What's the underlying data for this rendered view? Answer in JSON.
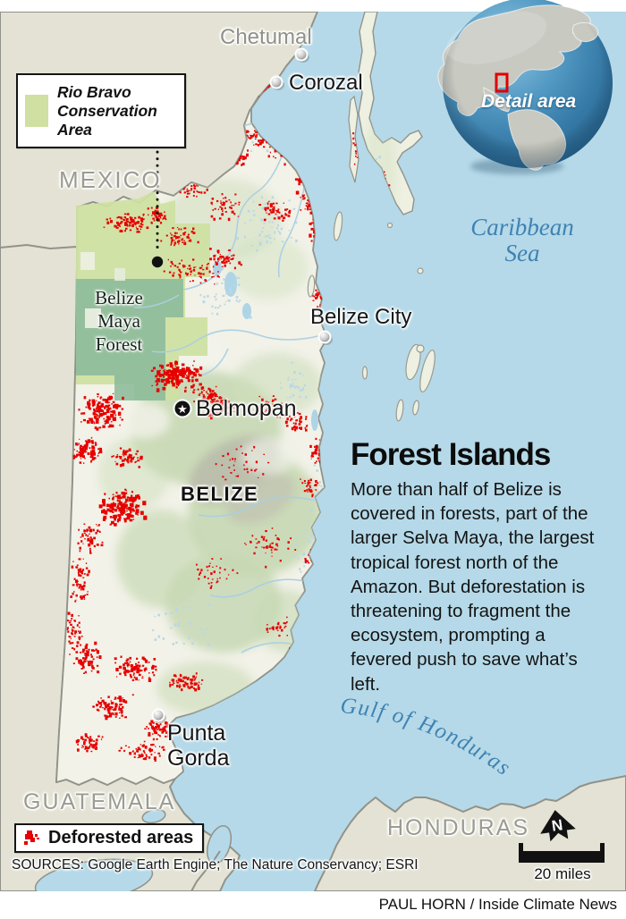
{
  "title_block": {
    "title": "Forest Islands",
    "body": "More than half of Belize is covered in forests, part of the larger Selva Maya, the largest tropical forest north of the Amazon. But deforestation is threatening to fragment the ecosystem, prompting a fevered push to save what’s left."
  },
  "legends": {
    "rio_bravo": "Rio Bravo Conservation Area",
    "deforested": "Deforested areas"
  },
  "labels": {
    "mexico": "MEXICO",
    "belize": "BELIZE",
    "guatemala": "GUATEMALA",
    "honduras": "HONDURAS",
    "chetumal": "Chetumal",
    "corozal": "Corozal",
    "belize_city": "Belize City",
    "belmopan": "Belmopan",
    "punta_gorda": "Punta Gorda",
    "caribbean_sea": "Caribbean Sea",
    "gulf_of_honduras": "Gulf of Honduras",
    "maya_forest": "Belize Maya Forest"
  },
  "globe": {
    "label": "Detail area"
  },
  "scale_bar": {
    "label": "20 miles"
  },
  "north_arrow": {
    "label": "N"
  },
  "sources": "SOURCES: Google Earth Engine; The Nature Conservancy; ESRI",
  "credit": "PAUL HORN / Inside Climate News",
  "colors": {
    "deforested_red": "#e60000",
    "rio_bravo_green": "#cfe0a2",
    "maya_forest_green": "#8cbb9b",
    "water_blue": "#b5d9e8",
    "outer_land": "#e3e2d4",
    "sea_label_blue": "#3f82b3"
  }
}
